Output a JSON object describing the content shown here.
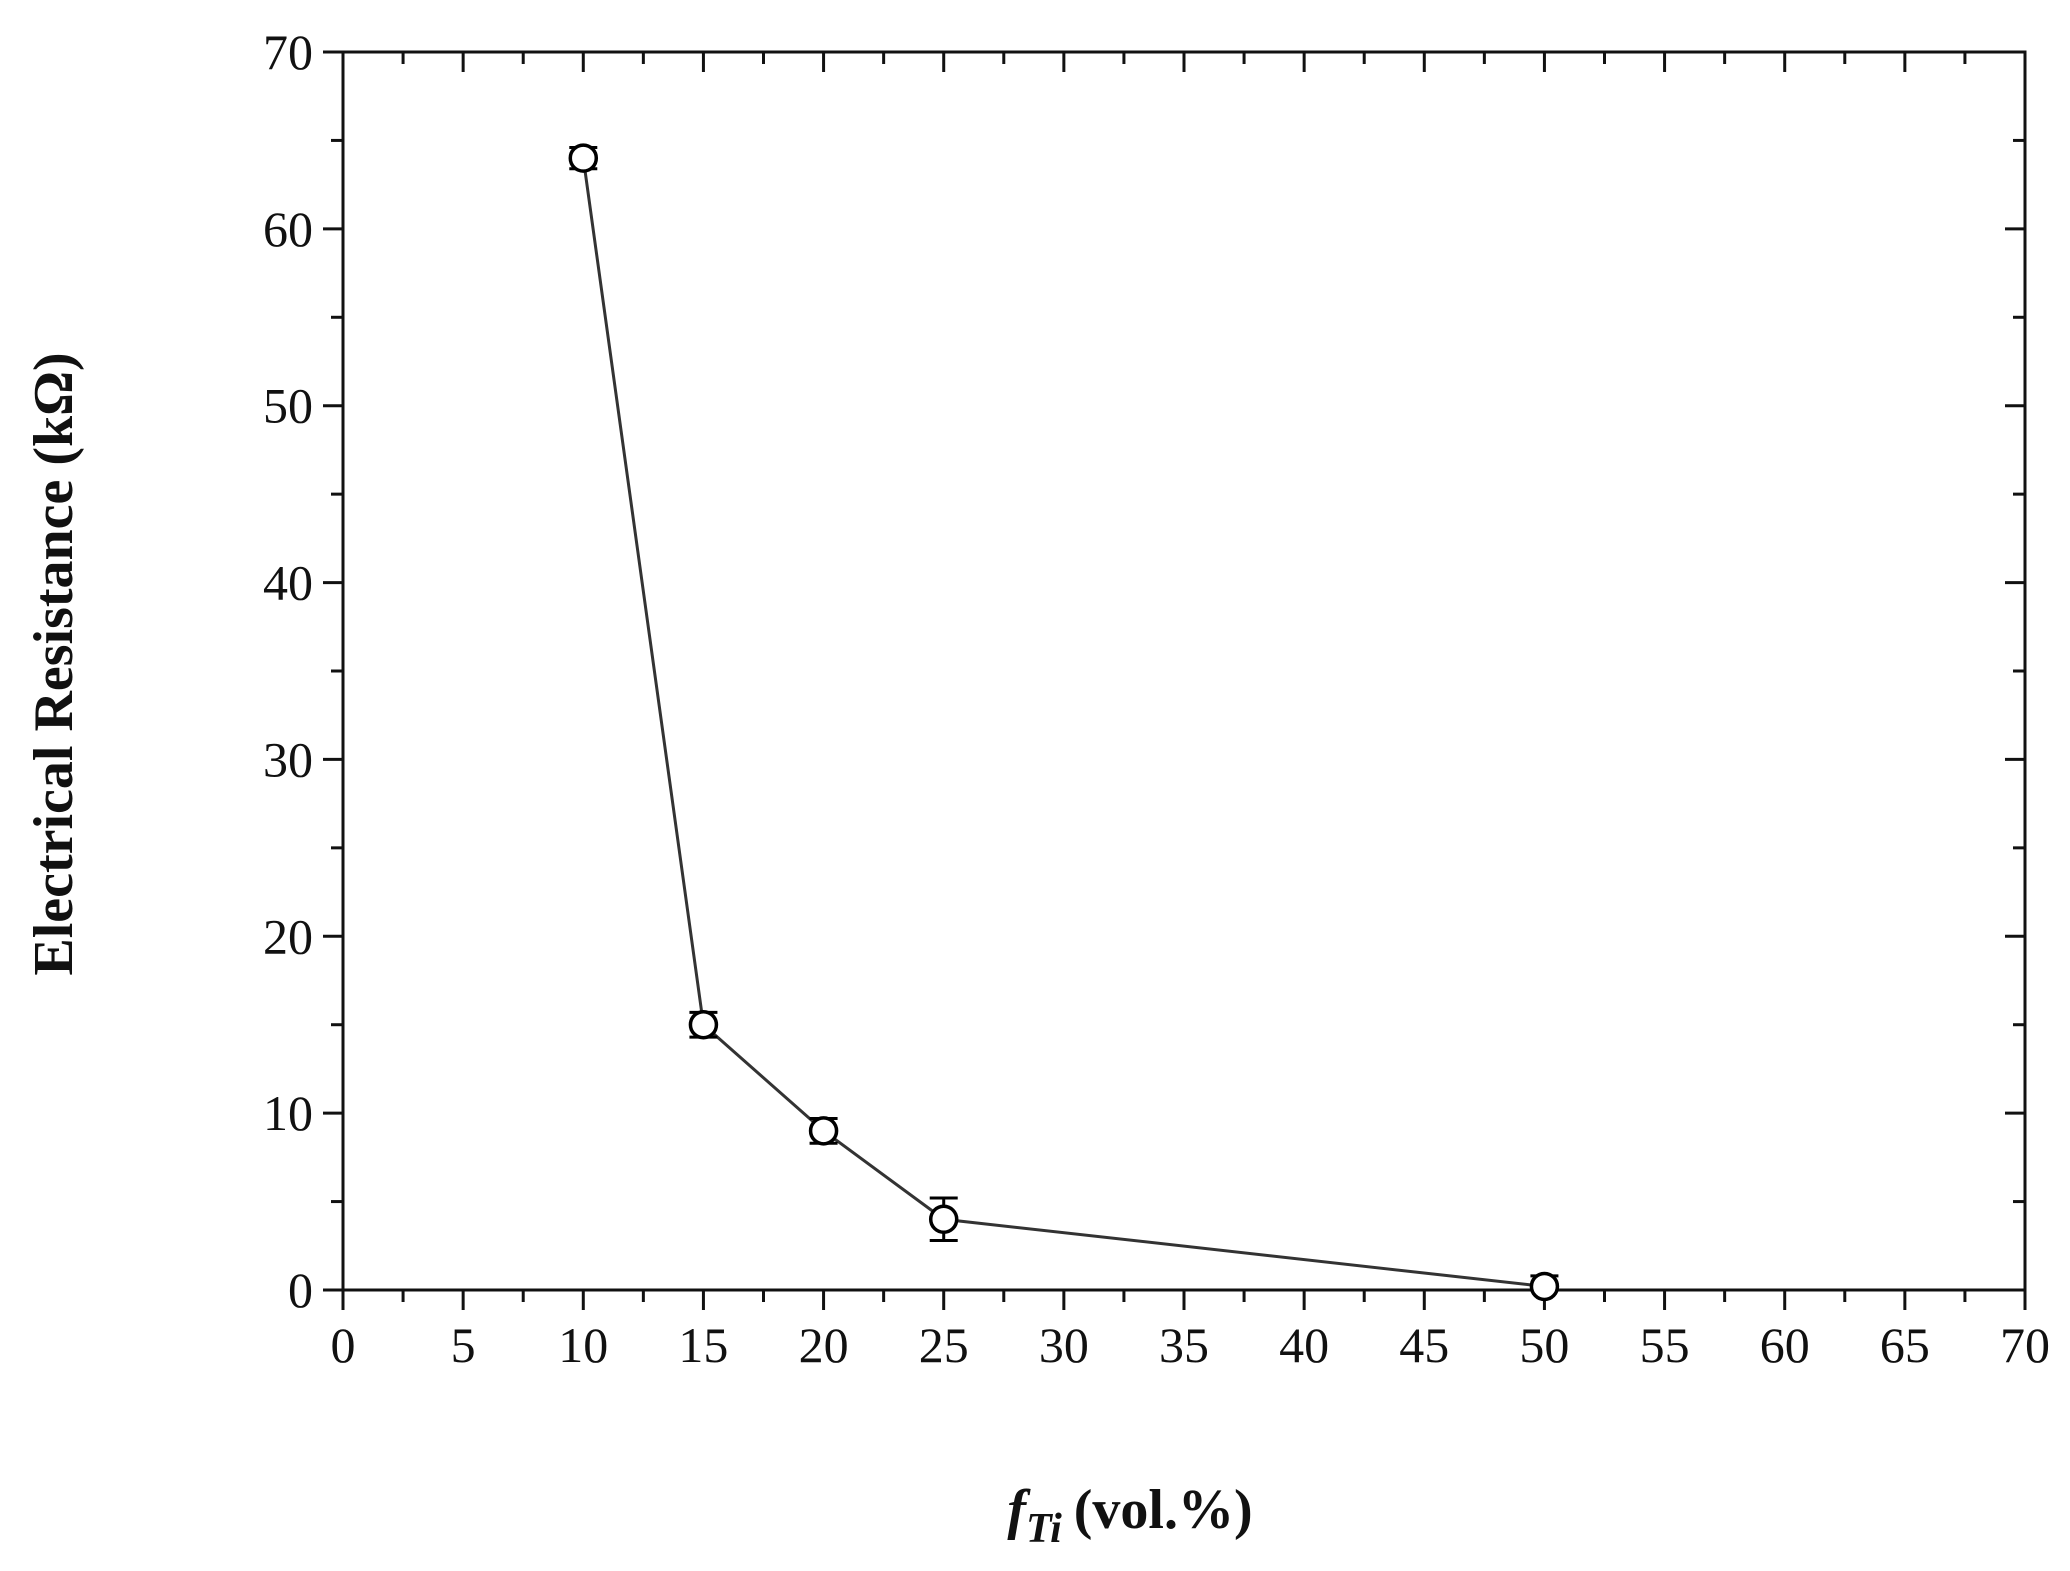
{
  "chart_data": {
    "type": "line",
    "title": "",
    "xlabel": {
      "symbol": "f",
      "subscript": "Ti",
      "unit": "(vol.%)"
    },
    "ylabel": "Electrical Resistance (kΩ)",
    "xlim": [
      0,
      70
    ],
    "ylim": [
      0,
      70
    ],
    "x_ticks": [
      0,
      5,
      10,
      15,
      20,
      25,
      30,
      35,
      40,
      45,
      50,
      55,
      60,
      65,
      70
    ],
    "y_ticks": [
      0,
      10,
      20,
      30,
      40,
      50,
      60,
      70
    ],
    "x_minor_step": 2.5,
    "y_minor_step": 5,
    "grid": false,
    "legend": "none",
    "series": [
      {
        "marker": "open-circle",
        "color": "#000000",
        "line_color": "#333333",
        "points": [
          {
            "x": 10,
            "y": 64.0,
            "err": 0.6
          },
          {
            "x": 15,
            "y": 15.0,
            "err": 0.7
          },
          {
            "x": 20,
            "y": 9.0,
            "err": 0.7
          },
          {
            "x": 25,
            "y": 4.0,
            "err": 1.2
          },
          {
            "x": 50,
            "y": 0.2,
            "err": 0.6
          }
        ]
      }
    ]
  }
}
